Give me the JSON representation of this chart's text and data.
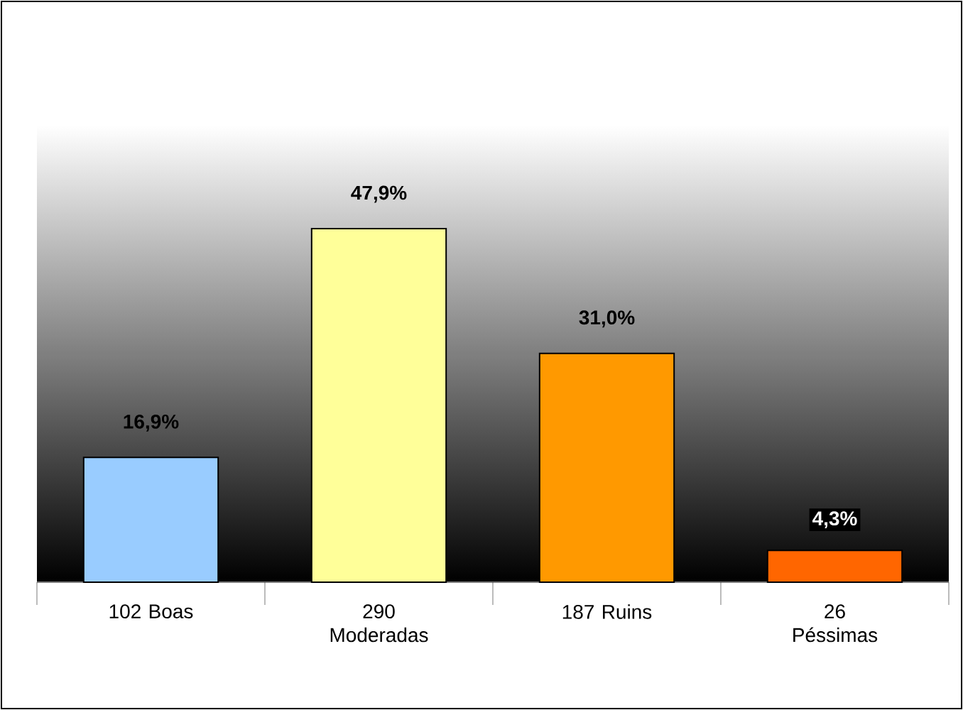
{
  "chart_data": {
    "type": "bar",
    "categories": [
      "102 Boas",
      "290 Moderadas",
      "187 Ruins",
      "26 Péssimas"
    ],
    "values": [
      16.9,
      47.9,
      31.0,
      4.3
    ],
    "value_labels": [
      "16,9%",
      "47,9%",
      "31,0%",
      "4,3%"
    ],
    "colors": [
      "#99ccff",
      "#ffff99",
      "#ff9900",
      "#ff6600"
    ]
  }
}
